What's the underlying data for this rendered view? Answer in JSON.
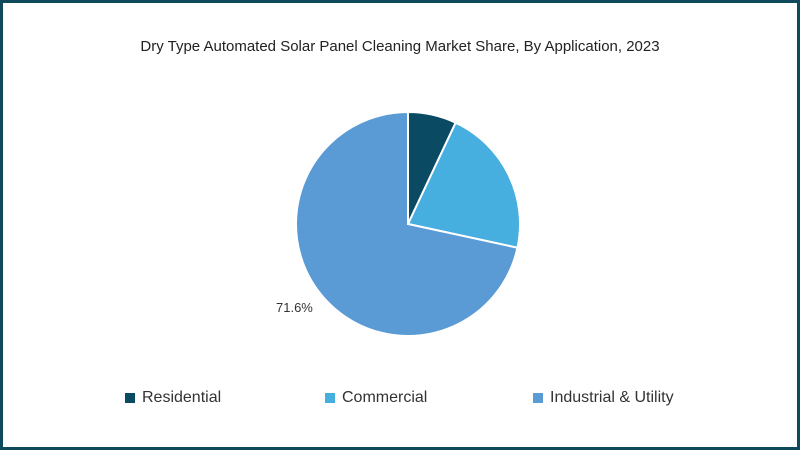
{
  "title": "Dry Type Automated Solar Panel Cleaning Market Share, By Application, 2023",
  "legend": [
    {
      "label": "Residential",
      "color": "#0b4a63"
    },
    {
      "label": "Commercial",
      "color": "#47aee0"
    },
    {
      "label": "Industrial & Utility",
      "color": "#5b9bd5"
    }
  ],
  "data_labels": {
    "industrial": "71.6%"
  },
  "chart_data": {
    "type": "pie",
    "title": "Dry Type Automated Solar Panel Cleaning Market Share, By Application, 2023",
    "categories": [
      "Residential",
      "Commercial",
      "Industrial & Utility"
    ],
    "values": [
      7.0,
      21.4,
      71.6
    ],
    "colors": [
      "#0b4a63",
      "#47aee0",
      "#5b9bd5"
    ],
    "labeled_values": {
      "Industrial & Utility": "71.6%"
    },
    "start_angle": "12 o'clock, clockwise",
    "legend_position": "bottom"
  }
}
